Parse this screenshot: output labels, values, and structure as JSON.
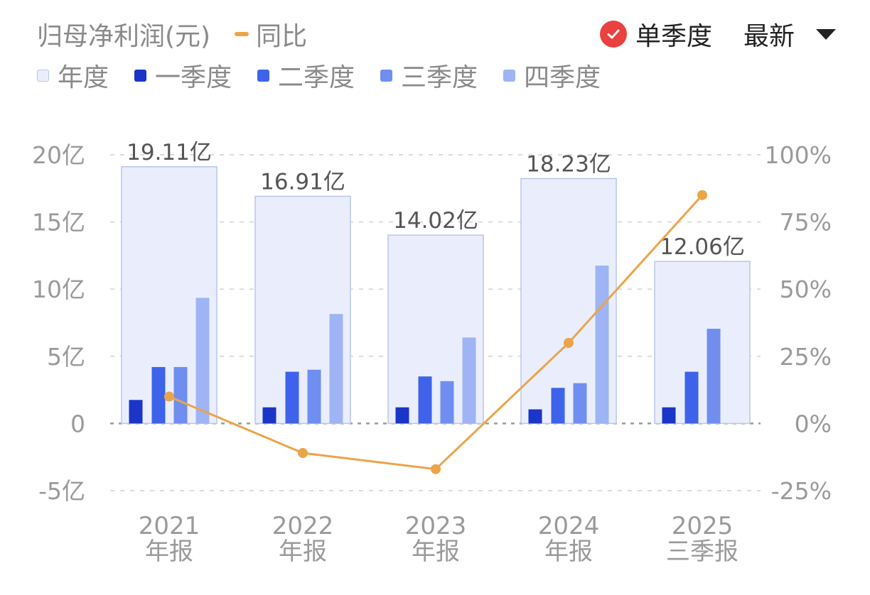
{
  "header": {
    "title": "归母净利润(元)",
    "yoy_label": "同比",
    "toggle_label": "单季度",
    "toggle_checked": true,
    "select_value": "最新"
  },
  "colors": {
    "annual": "#eaeefc",
    "annual_border": "#b9c6ee",
    "q1": "#1a35c8",
    "q2": "#3e63ea",
    "q3": "#6f8ef0",
    "q4": "#9fb4f4",
    "yoy_line": "#eba44a",
    "check": "#e8413f"
  },
  "legend": [
    {
      "key": "annual",
      "label": "年度"
    },
    {
      "key": "q1",
      "label": "一季度"
    },
    {
      "key": "q2",
      "label": "二季度"
    },
    {
      "key": "q3",
      "label": "三季度"
    },
    {
      "key": "q4",
      "label": "四季度"
    }
  ],
  "chart_data": {
    "type": "bar",
    "categories": [
      {
        "year": "2021",
        "period": "年报"
      },
      {
        "year": "2022",
        "period": "年报"
      },
      {
        "year": "2023",
        "period": "年报"
      },
      {
        "year": "2024",
        "period": "年报"
      },
      {
        "year": "2025",
        "period": "三季报"
      }
    ],
    "annual": {
      "values": [
        19.11,
        16.91,
        14.02,
        18.23,
        12.06
      ],
      "labels": [
        "19.11亿",
        "16.91亿",
        "14.02亿",
        "18.23亿",
        "12.06亿"
      ]
    },
    "series": [
      {
        "key": "q1",
        "name": "一季度",
        "values": [
          1.75,
          1.2,
          1.2,
          1.05,
          1.2
        ]
      },
      {
        "key": "q2",
        "name": "二季度",
        "values": [
          4.2,
          3.85,
          3.5,
          2.65,
          3.85
        ]
      },
      {
        "key": "q3",
        "name": "三季度",
        "values": [
          4.2,
          4.0,
          3.15,
          3.0,
          7.05
        ]
      },
      {
        "key": "q4",
        "name": "四季度",
        "values": [
          9.35,
          8.15,
          6.4,
          11.75,
          null
        ]
      }
    ],
    "yoy": {
      "name": "同比",
      "values": [
        10,
        -11,
        -17,
        30,
        85
      ]
    },
    "y_left": {
      "min": -5,
      "max": 20,
      "ticks": [
        -5,
        0,
        5,
        10,
        15,
        20
      ],
      "tick_labels": [
        "-5亿",
        "0",
        "5亿",
        "10亿",
        "15亿",
        "20亿"
      ]
    },
    "y_right": {
      "min": -25,
      "max": 100,
      "ticks": [
        -25,
        0,
        25,
        50,
        75,
        100
      ],
      "tick_labels": [
        "-25%",
        "0%",
        "25%",
        "50%",
        "75%",
        "100%"
      ]
    },
    "grid": true
  }
}
